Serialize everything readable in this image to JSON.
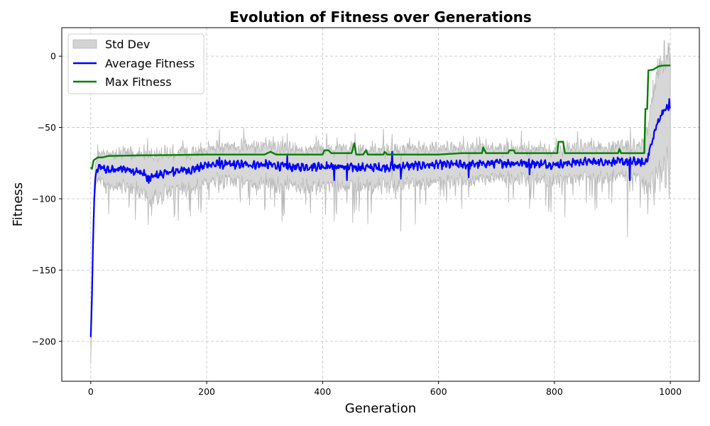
{
  "chart_data": {
    "type": "line",
    "title": "Evolution of Fitness over Generations",
    "xlabel": "Generation",
    "ylabel": "Fitness",
    "xlim": [
      -50,
      1050
    ],
    "ylim": [
      -228,
      20
    ],
    "xticks": [
      0,
      200,
      400,
      600,
      800,
      1000
    ],
    "yticks": [
      0,
      -50,
      -100,
      -150,
      -200
    ],
    "ytick_labels": [
      "0",
      "−50",
      "−100",
      "−150",
      "−200"
    ],
    "grid": true,
    "legend_position": "top-left",
    "legend": [
      "Std Dev",
      "Average Fitness",
      "Max Fitness"
    ],
    "colors": {
      "avg": "#0000ff",
      "max": "#008000",
      "band_fill": "#d3d3d3",
      "band_edge": "#b8b8b8"
    },
    "avg_keypoints": [
      [
        0,
        -197
      ],
      [
        2,
        -170
      ],
      [
        4,
        -130
      ],
      [
        6,
        -100
      ],
      [
        8,
        -85
      ],
      [
        10,
        -80
      ],
      [
        15,
        -78
      ],
      [
        30,
        -80
      ],
      [
        60,
        -79
      ],
      [
        90,
        -82
      ],
      [
        100,
        -86
      ],
      [
        110,
        -84
      ],
      [
        130,
        -82
      ],
      [
        150,
        -80
      ],
      [
        170,
        -80
      ],
      [
        190,
        -78
      ],
      [
        200,
        -76
      ],
      [
        250,
        -76
      ],
      [
        300,
        -76
      ],
      [
        350,
        -78
      ],
      [
        400,
        -77
      ],
      [
        450,
        -78
      ],
      [
        500,
        -78
      ],
      [
        550,
        -77
      ],
      [
        600,
        -76
      ],
      [
        650,
        -76
      ],
      [
        700,
        -75
      ],
      [
        750,
        -75
      ],
      [
        800,
        -76
      ],
      [
        850,
        -74
      ],
      [
        900,
        -74
      ],
      [
        940,
        -74
      ],
      [
        955,
        -75
      ],
      [
        960,
        -72
      ],
      [
        965,
        -65
      ],
      [
        970,
        -58
      ],
      [
        975,
        -50
      ],
      [
        980,
        -45
      ],
      [
        985,
        -40
      ],
      [
        990,
        -38
      ],
      [
        995,
        -36
      ],
      [
        1000,
        -38
      ]
    ],
    "avg_spikes": [
      [
        100,
        -89
      ],
      [
        143,
        -84
      ],
      [
        222,
        -71
      ],
      [
        339,
        -70
      ],
      [
        420,
        -87
      ],
      [
        442,
        -87
      ],
      [
        520,
        -67
      ],
      [
        535,
        -86
      ],
      [
        652,
        -85
      ],
      [
        757,
        -83
      ],
      [
        909,
        -71
      ],
      [
        930,
        -87
      ],
      [
        998,
        -30
      ]
    ],
    "max_steps": [
      [
        0,
        -78
      ],
      [
        2,
        -79
      ],
      [
        5,
        -73
      ],
      [
        12,
        -71
      ],
      [
        20,
        -71
      ],
      [
        30,
        -70
      ],
      [
        90,
        -69.5
      ],
      [
        100,
        -69.5
      ],
      [
        200,
        -69
      ],
      [
        300,
        -69
      ],
      [
        310,
        -67
      ],
      [
        320,
        -69
      ],
      [
        400,
        -69
      ],
      [
        403,
        -66
      ],
      [
        410,
        -66
      ],
      [
        415,
        -68
      ],
      [
        430,
        -68
      ],
      [
        450,
        -68
      ],
      [
        455,
        -61
      ],
      [
        458,
        -69
      ],
      [
        470,
        -69
      ],
      [
        475,
        -66
      ],
      [
        478,
        -69
      ],
      [
        505,
        -69
      ],
      [
        507,
        -67
      ],
      [
        512,
        -69
      ],
      [
        600,
        -69
      ],
      [
        640,
        -68
      ],
      [
        675,
        -68
      ],
      [
        677,
        -64
      ],
      [
        682,
        -68
      ],
      [
        720,
        -68
      ],
      [
        722,
        -66
      ],
      [
        730,
        -66
      ],
      [
        732,
        -68
      ],
      [
        805,
        -68
      ],
      [
        807,
        -60
      ],
      [
        815,
        -60
      ],
      [
        818,
        -68
      ],
      [
        910,
        -68
      ],
      [
        912,
        -65
      ],
      [
        915,
        -68
      ],
      [
        955,
        -68
      ],
      [
        957,
        -37
      ],
      [
        960,
        -37
      ],
      [
        962,
        -10
      ],
      [
        970,
        -9.5
      ],
      [
        980,
        -7
      ],
      [
        990,
        -6.5
      ],
      [
        1000,
        -6.5
      ]
    ],
    "band_halfwidth": [
      [
        0,
        15
      ],
      [
        10,
        6
      ],
      [
        20,
        10
      ],
      [
        80,
        12
      ],
      [
        100,
        14
      ],
      [
        200,
        11
      ],
      [
        300,
        12
      ],
      [
        400,
        12
      ],
      [
        500,
        12
      ],
      [
        600,
        11
      ],
      [
        700,
        10
      ],
      [
        800,
        10
      ],
      [
        900,
        10
      ],
      [
        950,
        10
      ],
      [
        960,
        20
      ],
      [
        980,
        35
      ],
      [
        1000,
        40
      ]
    ],
    "band_dips": [
      [
        105,
        -112
      ],
      [
        145,
        -110
      ],
      [
        330,
        -116
      ],
      [
        452,
        -117
      ],
      [
        478,
        -118
      ],
      [
        535,
        -123
      ],
      [
        560,
        -118
      ],
      [
        640,
        -107
      ],
      [
        818,
        -113
      ],
      [
        870,
        -108
      ],
      [
        926,
        -127
      ],
      [
        998,
        -100
      ]
    ]
  }
}
